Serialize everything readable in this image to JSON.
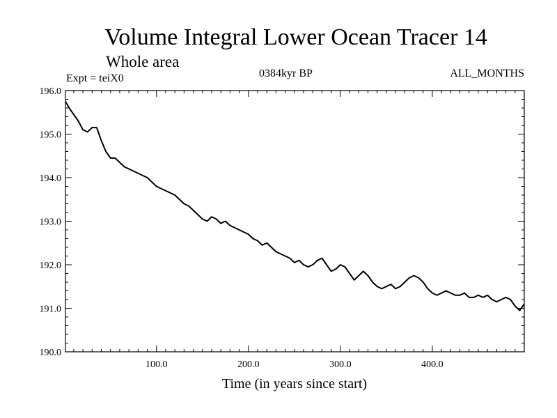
{
  "chart_data": {
    "type": "line",
    "title": "Volume Integral Lower Ocean Tracer 14",
    "subtitle": "Whole area",
    "expt_label": "Expt = teiX0",
    "period_label": "0384kyr BP",
    "months_label": "ALL_MONTHS",
    "xlabel": "Time (in years since start)",
    "ylabel": "",
    "xlim": [
      1,
      500
    ],
    "ylim": [
      190.0,
      196.0
    ],
    "xticks": [
      100.0,
      200.0,
      300.0,
      400.0
    ],
    "xtick_labels": [
      "100.0",
      "200.0",
      "300.0",
      "400.0"
    ],
    "yticks": [
      190.0,
      191.0,
      192.0,
      193.0,
      194.0,
      195.0,
      196.0
    ],
    "ytick_labels": [
      "190.0",
      "191.0",
      "192.0",
      "193.0",
      "194.0",
      "195.0",
      "196.0"
    ],
    "grid": false,
    "series": [
      {
        "x": [
          1,
          5,
          10,
          15,
          20,
          25,
          30,
          35,
          40,
          45,
          50,
          55,
          60,
          65,
          70,
          75,
          80,
          85,
          90,
          95,
          100,
          105,
          110,
          115,
          120,
          125,
          130,
          135,
          140,
          145,
          150,
          155,
          160,
          165,
          170,
          175,
          180,
          185,
          190,
          195,
          200,
          205,
          210,
          215,
          220,
          225,
          230,
          235,
          240,
          245,
          250,
          255,
          260,
          265,
          270,
          275,
          280,
          285,
          290,
          295,
          300,
          305,
          310,
          315,
          320,
          325,
          330,
          335,
          340,
          345,
          350,
          355,
          360,
          365,
          370,
          375,
          380,
          385,
          390,
          395,
          400,
          405,
          410,
          415,
          420,
          425,
          430,
          435,
          440,
          445,
          450,
          455,
          460,
          465,
          470,
          475,
          480,
          485,
          490,
          495,
          500
        ],
        "y": [
          195.75,
          195.6,
          195.45,
          195.3,
          195.1,
          195.05,
          195.15,
          195.15,
          194.85,
          194.6,
          194.45,
          194.45,
          194.35,
          194.25,
          194.2,
          194.15,
          194.1,
          194.05,
          194.0,
          193.9,
          193.8,
          193.75,
          193.7,
          193.65,
          193.6,
          193.5,
          193.4,
          193.35,
          193.25,
          193.15,
          193.05,
          193.0,
          193.1,
          193.05,
          192.95,
          193.0,
          192.9,
          192.85,
          192.8,
          192.75,
          192.7,
          192.6,
          192.55,
          192.45,
          192.5,
          192.4,
          192.3,
          192.25,
          192.2,
          192.15,
          192.05,
          192.1,
          192.0,
          191.95,
          192.0,
          192.1,
          192.15,
          192.0,
          191.85,
          191.9,
          192.0,
          191.95,
          191.8,
          191.65,
          191.75,
          191.85,
          191.75,
          191.6,
          191.5,
          191.45,
          191.5,
          191.55,
          191.45,
          191.5,
          191.6,
          191.7,
          191.75,
          191.7,
          191.6,
          191.45,
          191.35,
          191.3,
          191.35,
          191.4,
          191.35,
          191.3,
          191.3,
          191.35,
          191.25,
          191.25,
          191.3,
          191.25,
          191.3,
          191.2,
          191.15,
          191.2,
          191.25,
          191.2,
          191.05,
          190.95,
          191.1
        ]
      }
    ]
  }
}
